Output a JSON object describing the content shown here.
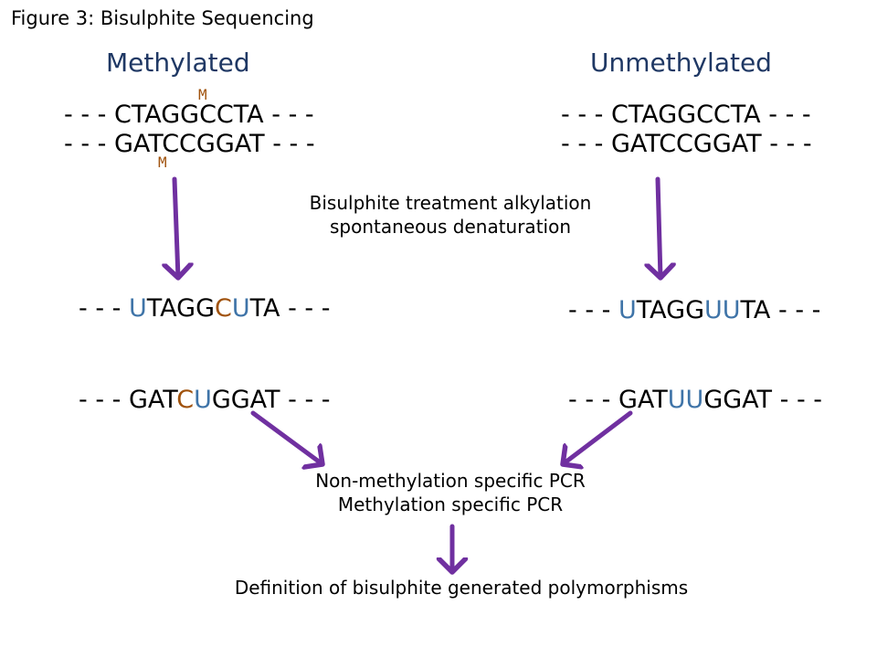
{
  "title": "Figure 3: Bisulphite Sequencing",
  "colors": {
    "heading": "#1f3864",
    "methyl_mark": "#a0520c",
    "uracil": "#3f74a8",
    "protected_c": "#a0520c",
    "arrow": "#7030a0"
  },
  "headings": {
    "methylated": "Methylated",
    "unmethylated": "Unmethylated"
  },
  "methylated": {
    "top_strand": {
      "prefix": "- - - ",
      "seq": "CTAGGCCTA",
      "suffix": " - - -"
    },
    "bottom_strand": {
      "prefix": "- - - ",
      "seq": "GATCCGGAT",
      "suffix": " - - -"
    },
    "top_mark": "M",
    "bottom_mark": "M",
    "converted_top": {
      "prefix": "- - - ",
      "p1": "U",
      "p2": "TAGG",
      "p3": "C",
      "p4": "U",
      "p5": "TA",
      "suffix": " - - -"
    },
    "converted_bottom": {
      "prefix": "- - - ",
      "p1": "GAT",
      "p2": "C",
      "p3": "U",
      "p4": "GGAT",
      "suffix": " - - -"
    }
  },
  "unmethylated": {
    "top_strand": {
      "prefix": "- - - ",
      "seq": "CTAGGCCTA",
      "suffix": " - - -"
    },
    "bottom_strand": {
      "prefix": "- - - ",
      "seq": "GATCCGGAT",
      "suffix": " - - -"
    },
    "converted_top": {
      "prefix": "- - - ",
      "p1": "U",
      "p2": "TAGG",
      "p3": "UU",
      "p4": "TA",
      "suffix": " - - -"
    },
    "converted_bottom": {
      "prefix": "- - - ",
      "p1": "GAT",
      "p2": "UU",
      "p3": "GGAT",
      "suffix": " - - -"
    }
  },
  "labels": {
    "treatment_line1": "Bisulphite treatment alkylation",
    "treatment_line2": "spontaneous denaturation",
    "pcr_line1": "Non-methylation specific PCR",
    "pcr_line2": "Methylation specific PCR",
    "result": "Definition of bisulphite generated polymorphisms"
  }
}
